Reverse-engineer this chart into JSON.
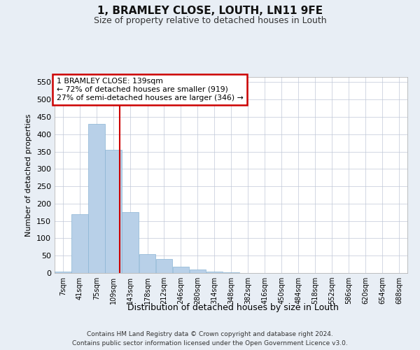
{
  "title": "1, BRAMLEY CLOSE, LOUTH, LN11 9FE",
  "subtitle": "Size of property relative to detached houses in Louth",
  "xlabel": "Distribution of detached houses by size in Louth",
  "ylabel": "Number of detached properties",
  "footer_line1": "Contains HM Land Registry data © Crown copyright and database right 2024.",
  "footer_line2": "Contains public sector information licensed under the Open Government Licence v3.0.",
  "annotation_line1": "1 BRAMLEY CLOSE: 139sqm",
  "annotation_line2": "← 72% of detached houses are smaller (919)",
  "annotation_line3": "27% of semi-detached houses are larger (346) →",
  "subject_size": 139,
  "bar_color": "#b8d0e8",
  "bar_edge_color": "#8ab4d4",
  "marker_color": "#cc0000",
  "annotation_box_color": "#cc0000",
  "categories": [
    "7sqm",
    "41sqm",
    "75sqm",
    "109sqm",
    "143sqm",
    "178sqm",
    "212sqm",
    "246sqm",
    "280sqm",
    "314sqm",
    "348sqm",
    "382sqm",
    "416sqm",
    "450sqm",
    "484sqm",
    "518sqm",
    "552sqm",
    "586sqm",
    "620sqm",
    "654sqm",
    "688sqm"
  ],
  "bin_starts": [
    7,
    41,
    75,
    109,
    143,
    178,
    212,
    246,
    280,
    314,
    348,
    382,
    416,
    450,
    484,
    518,
    552,
    586,
    620,
    654,
    688
  ],
  "bin_width": 34,
  "values": [
    5,
    170,
    430,
    355,
    175,
    55,
    40,
    18,
    10,
    5,
    2,
    1,
    0,
    0,
    0,
    1,
    0,
    0,
    0,
    1,
    0
  ],
  "ylim": [
    0,
    565
  ],
  "yticks": [
    0,
    50,
    100,
    150,
    200,
    250,
    300,
    350,
    400,
    450,
    500,
    550
  ],
  "bg_color": "#e8eef5",
  "plot_bg_color": "#ffffff",
  "grid_color": "#c0c8d8"
}
